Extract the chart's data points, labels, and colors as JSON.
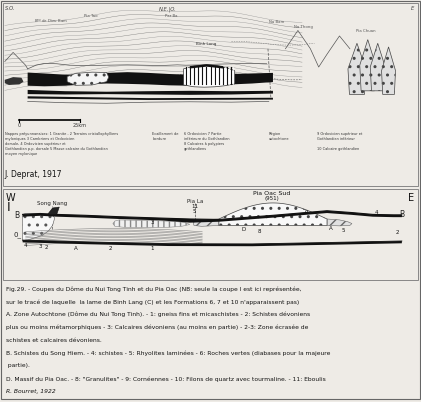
{
  "panel1_title": "J. Deprat, 1917",
  "panel1_legend_left": "Nappes préyunnanaises: 1 Granite - 2 Terrains cristallophylliens\nmyloniques 3 Cambriens et Ordovicien\ndorsale, 4 Ordovicien supérieur et\nGothlandien p.p. dorsale 5 Masse calcaire du Gothlandien\nmoyen mylonique",
  "panel1_legend_mid1": "Ecaillement de\nbordure",
  "panel1_legend_mid2": "6 Ordovicien 7 Partie\ninférieure du Gothlandien\n8 Calcaires à polypiers\ngothlandiens",
  "panel1_legend_mid3": "Région\nautochtone",
  "panel1_legend_right": "9 Ordovicien supérieur et\nGothlandien inférieur\n\n10 Calcaire gothlandien",
  "panel2_label_w": "W",
  "panel2_label_e": "E",
  "panel2_label_i": "I",
  "panel2_song_nang": "Song Nang",
  "panel2_pia_la": "Pia La",
  "panel2_pia_oac": "Pia Oac Sud\n(951)",
  "caption_line1": "Fig.29. - Coupes du Dôme du Nui Tong Tinh et du Pia Oac (NB: seule la coupe I est ici représentée,",
  "caption_line2": "sur le tracé de laquelle  la lame de Binh Lang (C) et les Formations 6, 7 et 10 n'apparaissent pas)",
  "caption_line3": "A. Zone Autochtone (Dôme du Nui Tong Tinh). - 1: gneiss fins et micaschistes - 2: Schistes dévoniens",
  "caption_line4": "plus ou moins métamorphiques - 3: Calcaires dévoniens (au moins en partie) - 2-3: Zone écrasée de",
  "caption_line5": "schistes et calcaires dévoniens.",
  "caption_line6": "B. Schistes du Song Hiem. - 4: schistes - 5: Rhyolites laminées - 6: Roches vertes (diabases pour la majeure",
  "caption_line7": " partie).",
  "caption_line8": "D. Massif du Pia Oac. - 8: \"Granulites\" - 9: Cornéennes - 10: Filons de quartz avec tourmaline. - 11: Eboulis",
  "caption_footer": "R. Bourret, 1922",
  "bg_color": "#eeebe6",
  "border_color": "#888888"
}
